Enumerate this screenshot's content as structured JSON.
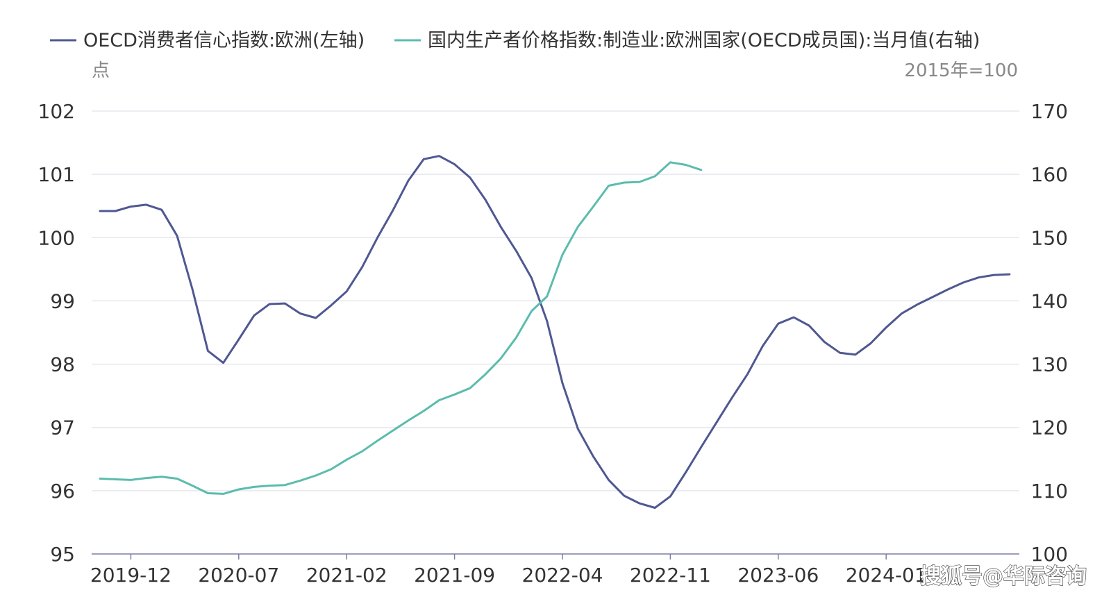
{
  "watermark": "搜狐号@华际咨询",
  "colors": {
    "cci": "#4f5891",
    "ppi": "#5bbcae",
    "grid": "#e6e8ee",
    "axis": "#7a7fa6"
  },
  "chart_data": {
    "type": "line",
    "legend": {
      "placement": "top-left"
    },
    "grid": true,
    "x_tick_labels": [
      "2019-12",
      "2020-07",
      "2021-02",
      "2021-09",
      "2022-04",
      "2022-11",
      "2023-06",
      "2024-01"
    ],
    "y_left": {
      "unit": "点",
      "ylim": [
        95,
        102
      ],
      "ticks": [
        "95",
        "96",
        "97",
        "98",
        "99",
        "100",
        "101",
        "102"
      ]
    },
    "y_right": {
      "unit": "2015年=100",
      "ylim": [
        100,
        170
      ],
      "ticks": [
        "100",
        "110",
        "120",
        "130",
        "140",
        "150",
        "160",
        "170"
      ]
    },
    "series": [
      {
        "name": "OECD消费者信心指数:欧洲(左轴)",
        "axis": "left",
        "x": [
          "2019-10",
          "2019-11",
          "2019-12",
          "2020-01",
          "2020-02",
          "2020-03",
          "2020-04",
          "2020-05",
          "2020-06",
          "2020-07",
          "2020-08",
          "2020-09",
          "2020-10",
          "2020-11",
          "2020-12",
          "2021-01",
          "2021-02",
          "2021-03",
          "2021-04",
          "2021-05",
          "2021-06",
          "2021-07",
          "2021-08",
          "2021-09",
          "2021-10",
          "2021-11",
          "2021-12",
          "2022-01",
          "2022-02",
          "2022-03",
          "2022-04",
          "2022-05",
          "2022-06",
          "2022-07",
          "2022-08",
          "2022-09",
          "2022-10",
          "2022-11",
          "2022-12",
          "2023-01",
          "2023-02",
          "2023-03",
          "2023-04",
          "2023-05",
          "2023-06",
          "2023-07",
          "2023-08",
          "2023-09",
          "2023-10",
          "2023-11",
          "2023-12",
          "2024-01",
          "2024-02",
          "2024-03",
          "2024-04",
          "2024-05",
          "2024-06",
          "2024-07",
          "2024-08",
          "2024-09"
        ],
        "values": [
          100.42,
          100.42,
          100.49,
          100.52,
          100.44,
          100.03,
          99.18,
          98.21,
          98.02,
          98.39,
          98.77,
          98.95,
          98.96,
          98.8,
          98.73,
          98.93,
          99.15,
          99.53,
          100.0,
          100.43,
          100.9,
          101.24,
          101.29,
          101.16,
          100.95,
          100.6,
          100.17,
          99.79,
          99.36,
          98.68,
          97.7,
          96.98,
          96.54,
          96.17,
          95.92,
          95.8,
          95.73,
          95.91,
          96.29,
          96.69,
          97.08,
          97.47,
          97.84,
          98.29,
          98.64,
          98.74,
          98.61,
          98.35,
          98.18,
          98.15,
          98.33,
          98.58,
          98.8,
          98.94,
          99.06,
          99.18,
          99.29,
          99.37,
          99.41,
          99.42
        ]
      },
      {
        "name": "国内生产者价格指数:制造业:欧洲国家(OECD成员国):当月值(右轴)",
        "axis": "right",
        "x": [
          "2019-10",
          "2019-11",
          "2019-12",
          "2020-01",
          "2020-02",
          "2020-03",
          "2020-04",
          "2020-05",
          "2020-06",
          "2020-07",
          "2020-08",
          "2020-09",
          "2020-10",
          "2020-11",
          "2020-12",
          "2021-01",
          "2021-02",
          "2021-03",
          "2021-04",
          "2021-05",
          "2021-06",
          "2021-07",
          "2021-08",
          "2021-09",
          "2021-10",
          "2021-11",
          "2021-12",
          "2022-01",
          "2022-02",
          "2022-03",
          "2022-04",
          "2022-05",
          "2022-06",
          "2022-07",
          "2022-08",
          "2022-09",
          "2022-10",
          "2022-11",
          "2022-12",
          "2023-01",
          "2023-02"
        ],
        "values": [
          111.9,
          111.8,
          111.7,
          112.0,
          112.2,
          111.9,
          110.8,
          109.6,
          109.5,
          110.2,
          110.6,
          110.8,
          110.9,
          111.6,
          112.4,
          113.4,
          114.9,
          116.2,
          117.9,
          119.5,
          121.1,
          122.6,
          124.3,
          125.2,
          126.2,
          128.4,
          130.9,
          134.2,
          138.4,
          140.7,
          147.3,
          151.7,
          154.9,
          158.2,
          158.7,
          158.8,
          159.7,
          161.9,
          161.5,
          160.7,
          null
        ]
      }
    ]
  }
}
